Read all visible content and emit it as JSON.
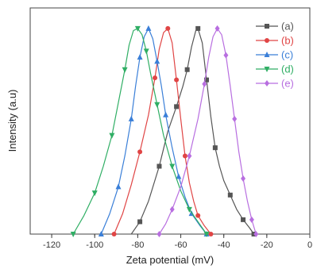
{
  "chart_data": {
    "type": "line",
    "title": "",
    "xlabel": "Zeta potential (mV)",
    "ylabel": "Intensity (a.u)",
    "xlim": [
      -130,
      0
    ],
    "ylim": [
      0,
      1.1
    ],
    "x_ticks": [
      -120,
      -100,
      -80,
      -60,
      -40,
      -20,
      0
    ],
    "x_tick_labels": [
      "-120",
      "-100",
      "-80",
      "-60",
      "-40",
      "-20",
      "0"
    ],
    "y_ticks_shown": false,
    "grid": false,
    "legend": "top-right",
    "series": [
      {
        "name": "(a)",
        "color": "#555555",
        "marker": "square",
        "points": [
          [
            -83,
            0
          ],
          [
            -79,
            0.06
          ],
          [
            -75,
            0.16
          ],
          [
            -70,
            0.33
          ],
          [
            -66,
            0.5
          ],
          [
            -62,
            0.62
          ],
          [
            -59,
            0.72
          ],
          [
            -57,
            0.8
          ],
          [
            -55,
            0.91
          ],
          [
            -53,
            0.99
          ],
          [
            -52,
            1.0
          ],
          [
            -50,
            0.93
          ],
          [
            -48,
            0.75
          ],
          [
            -46,
            0.57
          ],
          [
            -44,
            0.42
          ],
          [
            -42,
            0.33
          ],
          [
            -40,
            0.26
          ],
          [
            -37,
            0.19
          ],
          [
            -34,
            0.12
          ],
          [
            -31,
            0.07
          ],
          [
            -28,
            0.03
          ],
          [
            -26,
            0
          ]
        ],
        "marker_points": [
          [
            -79,
            0.06
          ],
          [
            -70,
            0.33
          ],
          [
            -62,
            0.62
          ],
          [
            -57,
            0.8
          ],
          [
            -52,
            1.0
          ],
          [
            -48,
            0.75
          ],
          [
            -44,
            0.42
          ],
          [
            -37,
            0.19
          ],
          [
            -31,
            0.07
          ],
          [
            -26,
            0
          ]
        ]
      },
      {
        "name": "(b)",
        "color": "#e04545",
        "marker": "circle",
        "points": [
          [
            -91,
            0
          ],
          [
            -87,
            0.1
          ],
          [
            -83,
            0.24
          ],
          [
            -79,
            0.4
          ],
          [
            -75,
            0.58
          ],
          [
            -72,
            0.76
          ],
          [
            -70,
            0.9
          ],
          [
            -68,
            0.98
          ],
          [
            -66,
            1.0
          ],
          [
            -64,
            0.93
          ],
          [
            -62,
            0.75
          ],
          [
            -60,
            0.56
          ],
          [
            -58,
            0.38
          ],
          [
            -56,
            0.25
          ],
          [
            -54,
            0.16
          ],
          [
            -52,
            0.09
          ],
          [
            -49,
            0.04
          ],
          [
            -46,
            0
          ]
        ],
        "marker_points": [
          [
            -91,
            0
          ],
          [
            -79,
            0.4
          ],
          [
            -72,
            0.76
          ],
          [
            -66,
            1.0
          ],
          [
            -62,
            0.75
          ],
          [
            -58,
            0.38
          ],
          [
            -52,
            0.09
          ],
          [
            -46,
            0
          ]
        ]
      },
      {
        "name": "(c)",
        "color": "#3a7fd8",
        "marker": "triangle-up",
        "points": [
          [
            -97,
            0
          ],
          [
            -93,
            0.1
          ],
          [
            -89,
            0.23
          ],
          [
            -86,
            0.38
          ],
          [
            -83,
            0.56
          ],
          [
            -81,
            0.72
          ],
          [
            -79,
            0.86
          ],
          [
            -77,
            0.96
          ],
          [
            -75,
            1.0
          ],
          [
            -73,
            0.95
          ],
          [
            -71,
            0.84
          ],
          [
            -69,
            0.72
          ],
          [
            -67,
            0.58
          ],
          [
            -64,
            0.42
          ],
          [
            -61,
            0.28
          ],
          [
            -58,
            0.18
          ],
          [
            -55,
            0.1
          ],
          [
            -51,
            0.04
          ],
          [
            -48,
            0
          ]
        ],
        "marker_points": [
          [
            -97,
            0
          ],
          [
            -89,
            0.23
          ],
          [
            -83,
            0.56
          ],
          [
            -79,
            0.86
          ],
          [
            -75,
            1.0
          ],
          [
            -71,
            0.84
          ],
          [
            -67,
            0.58
          ],
          [
            -61,
            0.28
          ],
          [
            -55,
            0.1
          ],
          [
            -48,
            0
          ]
        ]
      },
      {
        "name": "(d)",
        "color": "#2fae64",
        "marker": "triangle-down",
        "points": [
          [
            -110,
            0
          ],
          [
            -105,
            0.09
          ],
          [
            -100,
            0.2
          ],
          [
            -96,
            0.33
          ],
          [
            -92,
            0.48
          ],
          [
            -89,
            0.64
          ],
          [
            -86,
            0.8
          ],
          [
            -84,
            0.92
          ],
          [
            -82,
            0.99
          ],
          [
            -80,
            1.0
          ],
          [
            -78,
            0.97
          ],
          [
            -76,
            0.89
          ],
          [
            -74,
            0.78
          ],
          [
            -71,
            0.63
          ],
          [
            -68,
            0.48
          ],
          [
            -64,
            0.33
          ],
          [
            -60,
            0.21
          ],
          [
            -56,
            0.12
          ],
          [
            -52,
            0.06
          ],
          [
            -48,
            0
          ]
        ],
        "marker_points": [
          [
            -110,
            0
          ],
          [
            -100,
            0.2
          ],
          [
            -92,
            0.48
          ],
          [
            -86,
            0.8
          ],
          [
            -80,
            1.0
          ],
          [
            -76,
            0.89
          ],
          [
            -71,
            0.63
          ],
          [
            -64,
            0.33
          ],
          [
            -56,
            0.12
          ],
          [
            -48,
            0
          ]
        ]
      },
      {
        "name": "(e)",
        "color": "#b86ee0",
        "marker": "diamond",
        "points": [
          [
            -70,
            0
          ],
          [
            -67,
            0.05
          ],
          [
            -64,
            0.12
          ],
          [
            -60,
            0.23
          ],
          [
            -56,
            0.38
          ],
          [
            -52,
            0.56
          ],
          [
            -49,
            0.73
          ],
          [
            -47,
            0.86
          ],
          [
            -45,
            0.96
          ],
          [
            -43,
            1.0
          ],
          [
            -41,
            0.97
          ],
          [
            -39,
            0.87
          ],
          [
            -37,
            0.72
          ],
          [
            -35,
            0.56
          ],
          [
            -33,
            0.4
          ],
          [
            -31,
            0.27
          ],
          [
            -29,
            0.16
          ],
          [
            -27,
            0.07
          ],
          [
            -25,
            0
          ]
        ],
        "marker_points": [
          [
            -70,
            0
          ],
          [
            -64,
            0.12
          ],
          [
            -56,
            0.38
          ],
          [
            -49,
            0.73
          ],
          [
            -43,
            1.0
          ],
          [
            -39,
            0.87
          ],
          [
            -35,
            0.56
          ],
          [
            -31,
            0.27
          ],
          [
            -27,
            0.07
          ],
          [
            -25,
            0
          ]
        ]
      }
    ]
  }
}
